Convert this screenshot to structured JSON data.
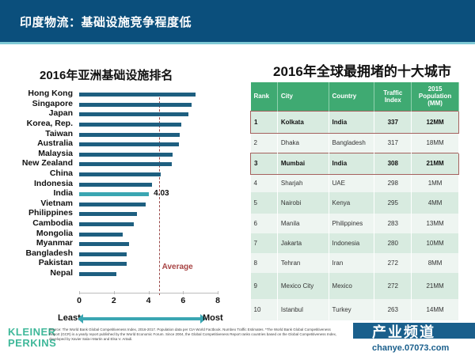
{
  "header": {
    "title": "印度物流：基础设施竞争程度低",
    "bg_color": "#0b4f7c"
  },
  "left_title": "2016年亚洲基础设施排名",
  "right_title": "2016年全球最拥堵的十大城市",
  "chart_data": {
    "type": "bar",
    "orientation": "horizontal",
    "title": "2016年亚洲基础设施排名",
    "categories": [
      "Hong Kong",
      "Singapore",
      "Japan",
      "Korea, Rep.",
      "Taiwan",
      "Australia",
      "Malaysia",
      "New Zealand",
      "China",
      "Indonesia",
      "India",
      "Vietnam",
      "Philippines",
      "Cambodia",
      "Mongolia",
      "Myanmar",
      "Bangladesh",
      "Pakistan",
      "Nepal"
    ],
    "values": [
      6.7,
      6.5,
      6.3,
      5.9,
      5.8,
      5.75,
      5.4,
      5.35,
      4.7,
      4.2,
      4.03,
      3.85,
      3.35,
      3.15,
      2.5,
      2.9,
      2.75,
      2.75,
      2.15
    ],
    "highlight": "India",
    "highlight_label": "4.03",
    "average": 4.6,
    "average_label": "Average",
    "xlim": [
      0,
      8
    ],
    "xticks": [
      "0",
      "2",
      "4",
      "6",
      "8"
    ],
    "axis_arrow": {
      "left": "Least",
      "right": "Most"
    },
    "colors": {
      "bar": "#1e5f80",
      "highlight": "#3aa6b2",
      "average": "#a84444"
    }
  },
  "table": {
    "headers": [
      "Rank",
      "City",
      "Country",
      "Traffic Index",
      "2015 Population (MM)"
    ],
    "rows": [
      {
        "rank": "1",
        "city": "Kolkata",
        "country": "India",
        "traffic": "337",
        "pop": "12MM",
        "highlight": true
      },
      {
        "rank": "2",
        "city": "Dhaka",
        "country": "Bangladesh",
        "traffic": "317",
        "pop": "18MM"
      },
      {
        "rank": "3",
        "city": "Mumbai",
        "country": "India",
        "traffic": "308",
        "pop": "21MM",
        "highlight": true
      },
      {
        "rank": "4",
        "city": "Sharjah",
        "country": "UAE",
        "traffic": "298",
        "pop": "1MM"
      },
      {
        "rank": "5",
        "city": "Nairobi",
        "country": "Kenya",
        "traffic": "295",
        "pop": "4MM"
      },
      {
        "rank": "6",
        "city": "Manila",
        "country": "Philippines",
        "traffic": "283",
        "pop": "13MM"
      },
      {
        "rank": "7",
        "city": "Jakarta",
        "country": "Indonesia",
        "traffic": "280",
        "pop": "10MM"
      },
      {
        "rank": "8",
        "city": "Tehran",
        "country": "Iran",
        "traffic": "272",
        "pop": "8MM"
      },
      {
        "rank": "9",
        "city": "Mexico City",
        "country": "Mexico",
        "traffic": "272",
        "pop": "21MM"
      },
      {
        "rank": "10",
        "city": "Istanbul",
        "country": "Turkey",
        "traffic": "263",
        "pop": "14MM"
      }
    ]
  },
  "footer": {
    "logo_line1": "KLEINER",
    "logo_line2": "PERKINS",
    "source": "Source: The World Bank Global Competitiveness Index, 2016-2017. Population data per CIA World Factbook. Numbeo Traffic Estimates. *The World Bank Global Competitiveness Report (GCR) is a yearly report published by the World Economic Forum. Since 2004, the Global Competitiveness Report ranks countries based on the Global Competitiveness Index, developed by Xavier Sala-i-Martin and Elsa V. Artadi.",
    "watermark_text": "产业频道",
    "watermark_url": "chanye.07073.com"
  }
}
